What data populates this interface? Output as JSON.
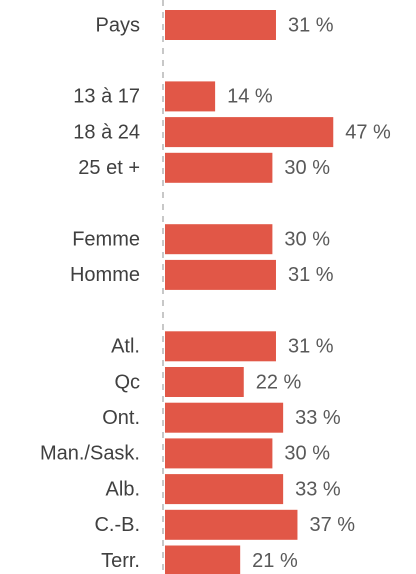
{
  "chart_data": {
    "type": "bar",
    "orientation": "horizontal",
    "color": "#e15747",
    "categories": [
      "Pays",
      null,
      "13 à 17",
      "18 à 24",
      "25 et +",
      null,
      "Femme",
      "Homme",
      null,
      "Atl.",
      "Qc",
      "Ont.",
      "Man./Sask.",
      "Alb.",
      "C.-B.",
      "Terr."
    ],
    "values": [
      31,
      null,
      14,
      47,
      30,
      null,
      30,
      31,
      null,
      31,
      22,
      33,
      30,
      33,
      37,
      21
    ],
    "value_labels": [
      "31 %",
      null,
      "14 %",
      "47 %",
      "30 %",
      null,
      "30 %",
      "31 %",
      null,
      "31 %",
      "22 %",
      "33 %",
      "30 %",
      "33 %",
      "37 %",
      "21 %"
    ]
  }
}
